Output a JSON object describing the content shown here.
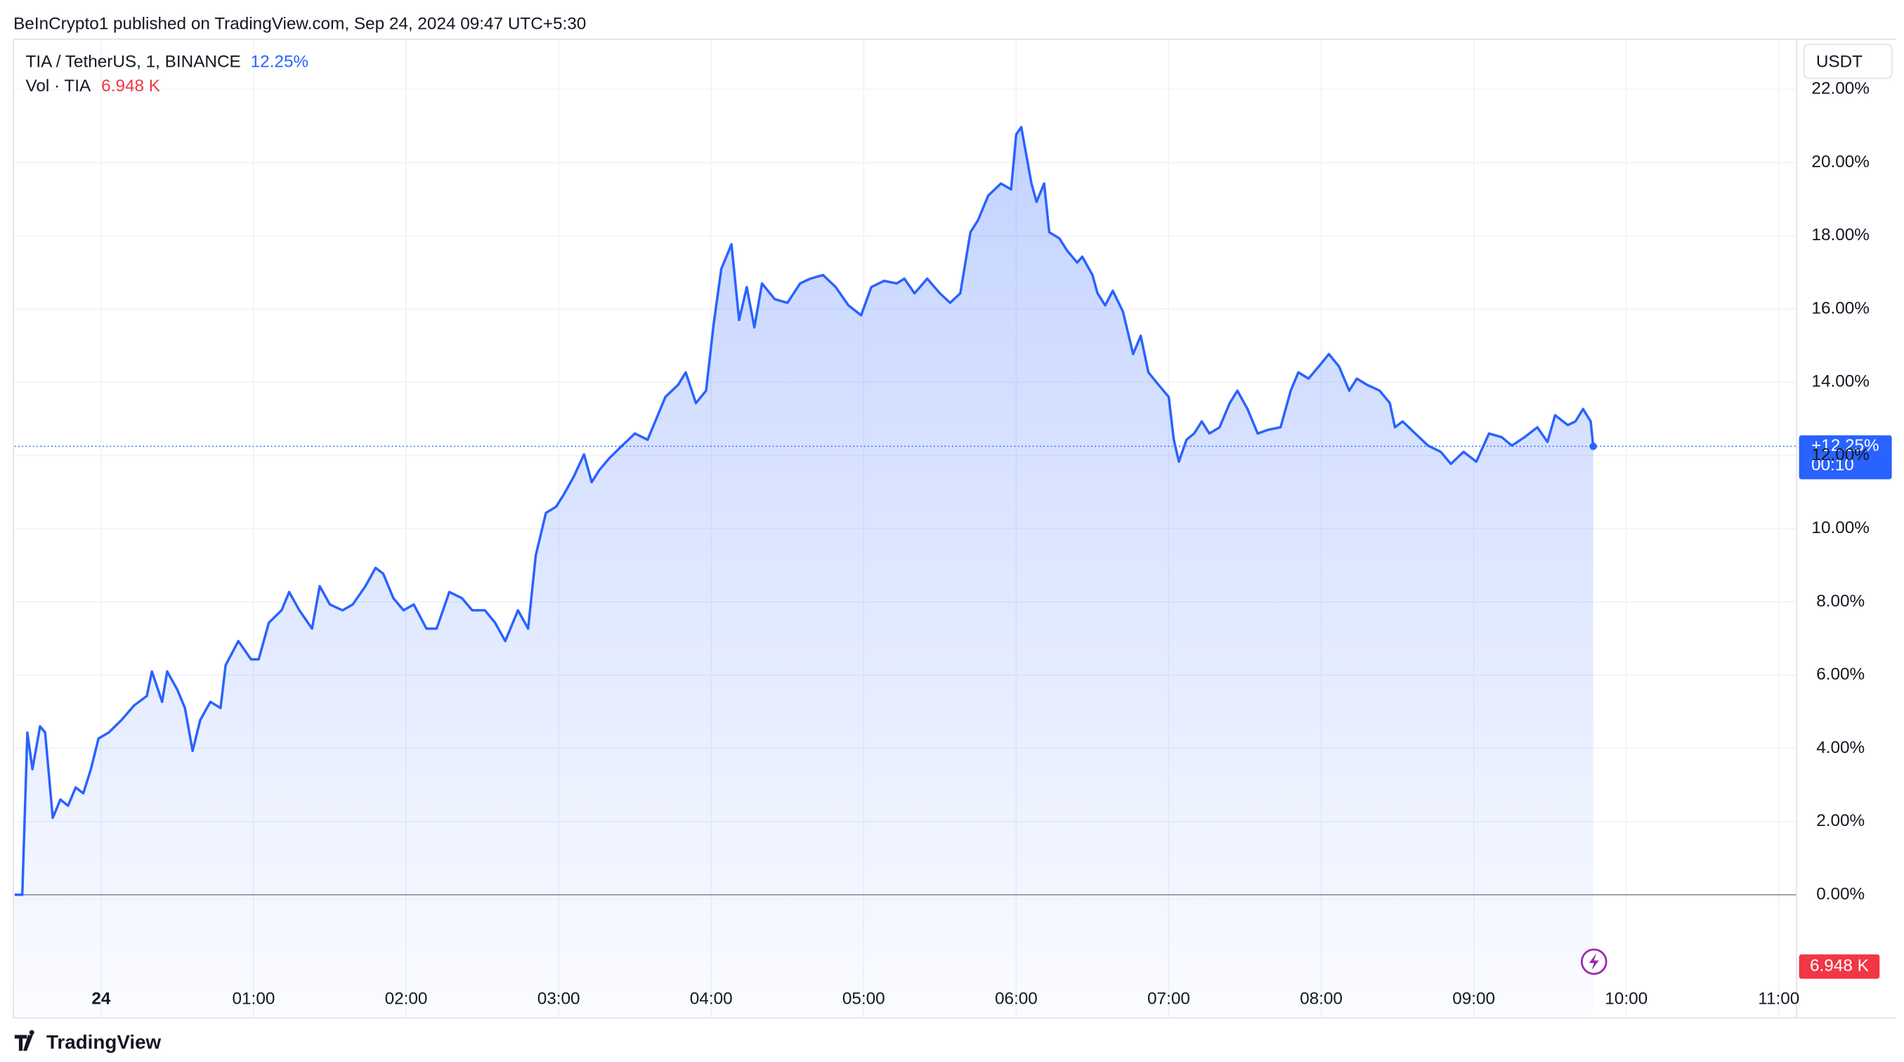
{
  "header": "BeInCrypto1 published on TradingView.com, Sep 24, 2024 09:47 UTC+5:30",
  "footer": "TradingView",
  "chart_data": {
    "type": "line",
    "legend_value": "12.25%",
    "volume_legend": "Vol · TIA",
    "volume_value": "6.948 K",
    "currency": "USDT",
    "price_tag": "+12.25%",
    "countdown": "00:10",
    "volume_tag": "6.948 K",
    "x": [
      -34,
      -31,
      -29,
      -27,
      -24,
      -22,
      -19,
      -16,
      -13,
      -10,
      -7,
      -4,
      -1,
      3,
      8,
      13,
      18,
      20,
      24,
      26,
      30,
      33,
      36,
      39,
      43,
      47,
      49,
      54,
      59,
      62,
      66,
      71,
      74,
      78,
      83,
      86,
      90,
      95,
      99,
      104,
      108,
      111,
      115,
      119,
      123,
      128,
      132,
      137,
      142,
      146,
      151,
      155,
      159,
      164,
      168,
      171,
      175,
      179,
      182,
      186,
      190,
      193,
      196,
      200,
      205,
      210,
      215,
      218,
      222,
      227,
      230,
      234,
      238,
      241,
      244,
      248,
      251,
      254,
      257,
      260,
      265,
      270,
      275,
      279,
      284,
      289,
      294,
      299,
      303,
      308,
      313,
      316,
      320,
      325,
      330,
      334,
      338,
      342,
      345,
      349,
      354,
      358,
      360,
      362,
      366,
      368,
      371,
      373,
      377,
      380,
      384,
      386,
      390,
      392,
      395,
      398,
      402,
      406,
      409,
      412,
      416,
      420,
      422,
      424,
      427,
      430,
      433,
      436,
      440,
      444,
      447,
      451,
      455,
      459,
      464,
      468,
      471,
      475,
      479,
      483,
      487,
      491,
      494,
      498,
      503,
      507,
      509,
      512,
      517,
      522,
      527,
      531,
      536,
      541,
      546,
      551,
      555,
      560,
      565,
      569,
      572,
      577,
      580,
      583,
      586,
      587
    ],
    "series": [
      {
        "name": "TIA / TetherUS, 1, BINANCE",
        "color": "#2962ff",
        "values": [
          0,
          0,
          4.43,
          3.43,
          4.6,
          4.43,
          2.1,
          2.6,
          2.43,
          2.93,
          2.77,
          3.43,
          4.27,
          4.43,
          4.77,
          5.17,
          5.43,
          6.1,
          5.27,
          6.1,
          5.6,
          5.1,
          3.93,
          4.77,
          5.27,
          5.1,
          6.27,
          6.93,
          6.43,
          6.43,
          7.43,
          7.77,
          8.27,
          7.77,
          7.27,
          8.43,
          7.93,
          7.77,
          7.93,
          8.43,
          8.93,
          8.77,
          8.1,
          7.77,
          7.93,
          7.27,
          7.27,
          8.27,
          8.1,
          7.77,
          7.77,
          7.43,
          6.93,
          7.77,
          7.27,
          9.27,
          10.43,
          10.6,
          10.93,
          11.43,
          12.03,
          11.27,
          11.6,
          11.93,
          12.27,
          12.6,
          12.43,
          12.93,
          13.6,
          13.93,
          14.27,
          13.43,
          13.77,
          15.6,
          17.1,
          17.77,
          15.7,
          16.6,
          15.5,
          16.7,
          16.27,
          16.17,
          16.7,
          16.83,
          16.93,
          16.6,
          16.1,
          15.83,
          16.6,
          16.77,
          16.7,
          16.83,
          16.43,
          16.83,
          16.43,
          16.17,
          16.43,
          18.1,
          18.43,
          19.1,
          19.43,
          19.27,
          20.77,
          20.97,
          19.43,
          18.93,
          19.43,
          18.1,
          17.93,
          17.6,
          17.27,
          17.43,
          16.93,
          16.43,
          16.1,
          16.5,
          15.93,
          14.77,
          15.27,
          14.27,
          13.93,
          13.6,
          12.43,
          11.83,
          12.43,
          12.6,
          12.93,
          12.6,
          12.77,
          13.43,
          13.77,
          13.27,
          12.6,
          12.7,
          12.77,
          13.77,
          14.27,
          14.1,
          14.43,
          14.77,
          14.43,
          13.77,
          14.1,
          13.93,
          13.77,
          13.43,
          12.77,
          12.93,
          12.6,
          12.27,
          12.1,
          11.77,
          12.1,
          11.83,
          12.6,
          12.5,
          12.27,
          12.5,
          12.77,
          12.37,
          13.1,
          12.83,
          12.93,
          13.27,
          12.93,
          12.25
        ]
      }
    ],
    "xlim": [
      -34,
      667
    ],
    "xticks": [
      {
        "value": 0,
        "label": "24"
      },
      {
        "value": 60,
        "label": "01:00"
      },
      {
        "value": 120,
        "label": "02:00"
      },
      {
        "value": 180,
        "label": "03:00"
      },
      {
        "value": 240,
        "label": "04:00"
      },
      {
        "value": 300,
        "label": "05:00"
      },
      {
        "value": 360,
        "label": "06:00"
      },
      {
        "value": 420,
        "label": "07:00"
      },
      {
        "value": 480,
        "label": "08:00"
      },
      {
        "value": 540,
        "label": "09:00"
      },
      {
        "value": 600,
        "label": "10:00"
      },
      {
        "value": 660,
        "label": "11:00"
      }
    ],
    "ylim": [
      -3.33,
      23.37
    ],
    "yticks": [
      {
        "value": 0,
        "label": "0.00%"
      },
      {
        "value": 2,
        "label": "2.00%"
      },
      {
        "value": 4,
        "label": "4.00%"
      },
      {
        "value": 6,
        "label": "6.00%"
      },
      {
        "value": 8,
        "label": "8.00%"
      },
      {
        "value": 10,
        "label": "10.00%"
      },
      {
        "value": 12,
        "label": "12.00%"
      },
      {
        "value": 14,
        "label": "14.00%"
      },
      {
        "value": 16,
        "label": "16.00%"
      },
      {
        "value": 18,
        "label": "18.00%"
      },
      {
        "value": 20,
        "label": "20.00%"
      },
      {
        "value": 22,
        "label": "22.00%"
      }
    ],
    "grid": true
  }
}
